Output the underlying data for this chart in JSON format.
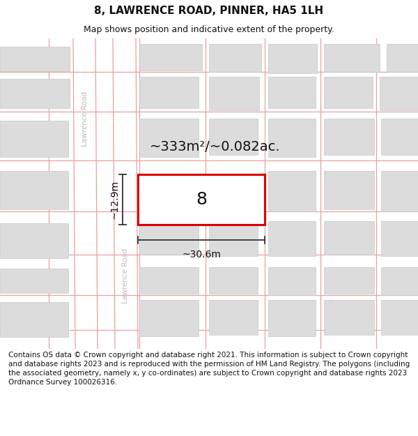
{
  "title": "8, LAWRENCE ROAD, PINNER, HA5 1LH",
  "subtitle": "Map shows position and indicative extent of the property.",
  "footer": "Contains OS data © Crown copyright and database right 2021. This information is subject to Crown copyright and database rights 2023 and is reproduced with the permission of HM Land Registry. The polygons (including the associated geometry, namely x, y co-ordinates) are subject to Crown copyright and database rights 2023 Ordnance Survey 100026316.",
  "map_bg": "#f2f2f2",
  "road_color": "#ffffff",
  "road_label_color": "#bbbbbb",
  "grid_line_color": "#e8a0a0",
  "building_fill": "#dcdcdc",
  "building_edge": "#c8c8c8",
  "highlight_fill": "#ffffff",
  "highlight_edge": "#dd0000",
  "highlight_edge_width": 2.2,
  "area_label": "~333m²/~0.082ac.",
  "width_label": "~30.6m",
  "height_label": "~12.9m",
  "property_number": "8",
  "road_name": "Lawrence Road",
  "title_fontsize": 11,
  "subtitle_fontsize": 9,
  "footer_fontsize": 7.5
}
